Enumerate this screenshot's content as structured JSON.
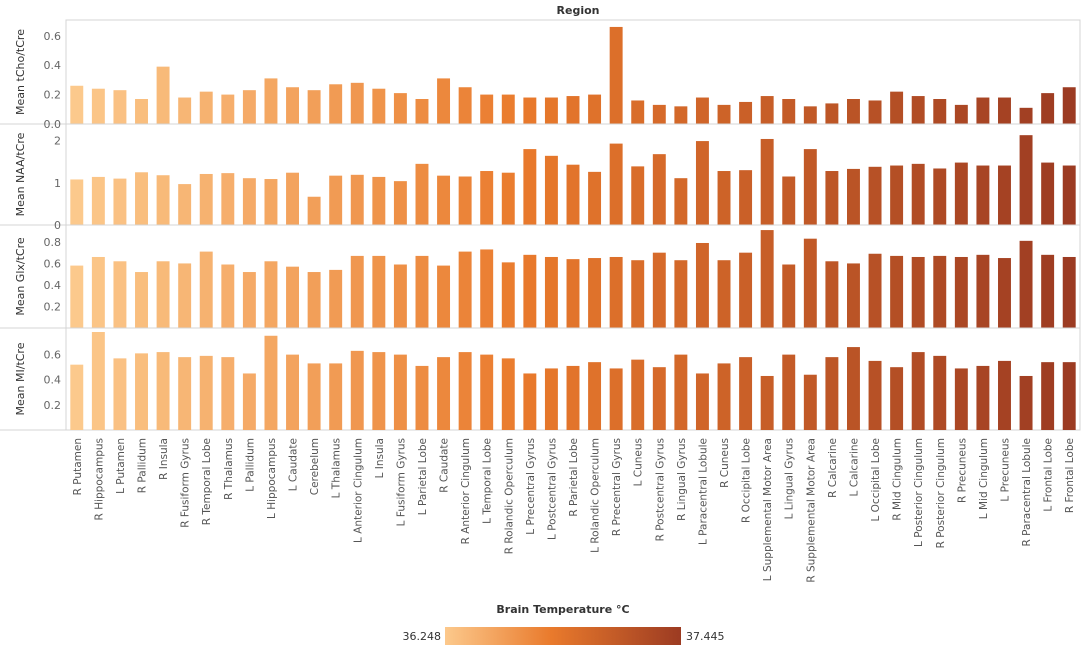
{
  "chart_data": {
    "type": "bar",
    "title": "Region",
    "categories": [
      "R Putamen",
      "R Hippocampus",
      "L Putamen",
      "R Pallidum",
      "R Insula",
      "R Fusiform Gyrus",
      "R Temporal Lobe",
      "R Thalamus",
      "L Pallidum",
      "L Hippocampus",
      "L Caudate",
      "Cerebelum",
      "L Thalamus",
      "L Anterior Cingulum",
      "L Insula",
      "L Fusiform Gyrus",
      "L Parietal Lobe",
      "R Caudate",
      "R Anterior Cingulum",
      "L Temporal Lobe",
      "R Rolandic Operculum",
      "L Precentral Gyrus",
      "L Postcentral Gyrus",
      "R Parietal Lobe",
      "L Rolandic Operculum",
      "R Precentral Gyrus",
      "L Cuneus",
      "R Postcentral Gyrus",
      "R Lingual Gyrus",
      "L Paracentral Lobule",
      "R Cuneus",
      "R Occipital Lobe",
      "L Supplemental Motor Area",
      "L Lingual Gyrus",
      "R Supplemental Motor Area",
      "R Calcarine",
      "L Calcarine",
      "L Occipital Lobe",
      "R Mid Cingulum",
      "L Posterior Cingulum",
      "R Posterior Cingulum",
      "R Precuneus",
      "L Mid Cingulum",
      "L Precuneus",
      "R Paracentral Lobule",
      "L Frontal Lobe",
      "R Frontal Lobe"
    ],
    "series": [
      {
        "name": "Mean tCho/tCre",
        "ylabel": "Mean tCho/tCre",
        "ylim": [
          0,
          0.68
        ],
        "ticks": [
          0.0,
          0.2,
          0.4,
          0.6
        ],
        "tick_labels": [
          "0.0",
          "0.2",
          "0.4",
          "0.6"
        ],
        "values": [
          0.26,
          0.24,
          0.23,
          0.17,
          0.39,
          0.18,
          0.22,
          0.2,
          0.23,
          0.31,
          0.25,
          0.23,
          0.27,
          0.28,
          0.24,
          0.21,
          0.17,
          0.31,
          0.25,
          0.2,
          0.2,
          0.18,
          0.18,
          0.19,
          0.2,
          0.66,
          0.16,
          0.13,
          0.12,
          0.18,
          0.13,
          0.15,
          0.19,
          0.17,
          0.12,
          0.14,
          0.17,
          0.16,
          0.22,
          0.19,
          0.17,
          0.13,
          0.18,
          0.18,
          0.11,
          0.21,
          0.25
        ]
      },
      {
        "name": "Mean NAA/tCre",
        "ylabel": "Mean NAA/tCre",
        "ylim": [
          0,
          2.3
        ],
        "ticks": [
          0,
          1,
          2
        ],
        "tick_labels": [
          "0",
          "1",
          "2"
        ],
        "values": [
          1.08,
          1.14,
          1.1,
          1.25,
          1.18,
          0.97,
          1.21,
          1.23,
          1.11,
          1.09,
          1.24,
          0.67,
          1.17,
          1.19,
          1.14,
          1.04,
          1.45,
          1.17,
          1.15,
          1.28,
          1.24,
          1.8,
          1.64,
          1.43,
          1.26,
          1.93,
          1.39,
          1.68,
          1.11,
          1.99,
          1.28,
          1.3,
          2.04,
          1.15,
          1.8,
          1.28,
          1.33,
          1.38,
          1.41,
          1.45,
          1.34,
          1.48,
          1.41,
          1.41,
          2.13,
          1.48,
          1.41
        ]
      },
      {
        "name": "Mean Glx/tCre",
        "ylabel": "Mean Glx/tCre",
        "ylim": [
          0,
          0.92
        ],
        "ticks": [
          0.2,
          0.4,
          0.6,
          0.8
        ],
        "tick_labels": [
          "0.2",
          "0.4",
          "0.6",
          "0.8"
        ],
        "values": [
          0.58,
          0.66,
          0.62,
          0.52,
          0.62,
          0.6,
          0.71,
          0.59,
          0.52,
          0.62,
          0.57,
          0.52,
          0.54,
          0.67,
          0.67,
          0.59,
          0.67,
          0.58,
          0.71,
          0.73,
          0.61,
          0.68,
          0.66,
          0.64,
          0.65,
          0.66,
          0.63,
          0.7,
          0.63,
          0.79,
          0.63,
          0.7,
          0.91,
          0.59,
          0.83,
          0.62,
          0.6,
          0.69,
          0.67,
          0.66,
          0.67,
          0.66,
          0.68,
          0.65,
          0.81,
          0.68,
          0.66
        ]
      },
      {
        "name": "Mean MI/tCre",
        "ylabel": "Mean MI/tCre",
        "ylim": [
          0,
          0.78
        ],
        "ticks": [
          0.2,
          0.4,
          0.6
        ],
        "tick_labels": [
          "0.2",
          "0.4",
          "0.6"
        ],
        "values": [
          0.52,
          0.78,
          0.57,
          0.61,
          0.62,
          0.58,
          0.59,
          0.58,
          0.45,
          0.75,
          0.6,
          0.53,
          0.53,
          0.63,
          0.62,
          0.6,
          0.51,
          0.58,
          0.62,
          0.6,
          0.57,
          0.45,
          0.49,
          0.51,
          0.54,
          0.49,
          0.56,
          0.5,
          0.6,
          0.45,
          0.53,
          0.58,
          0.43,
          0.6,
          0.44,
          0.58,
          0.66,
          0.55,
          0.5,
          0.62,
          0.59,
          0.49,
          0.51,
          0.55,
          0.43,
          0.54,
          0.54
        ]
      }
    ],
    "color_legend": {
      "title": "Brain Temperature °C",
      "min_label": "36.248",
      "max_label": "37.445",
      "min_color": "#fcc98c",
      "mid_color": "#e97a2c",
      "max_color": "#9c3b22"
    }
  }
}
